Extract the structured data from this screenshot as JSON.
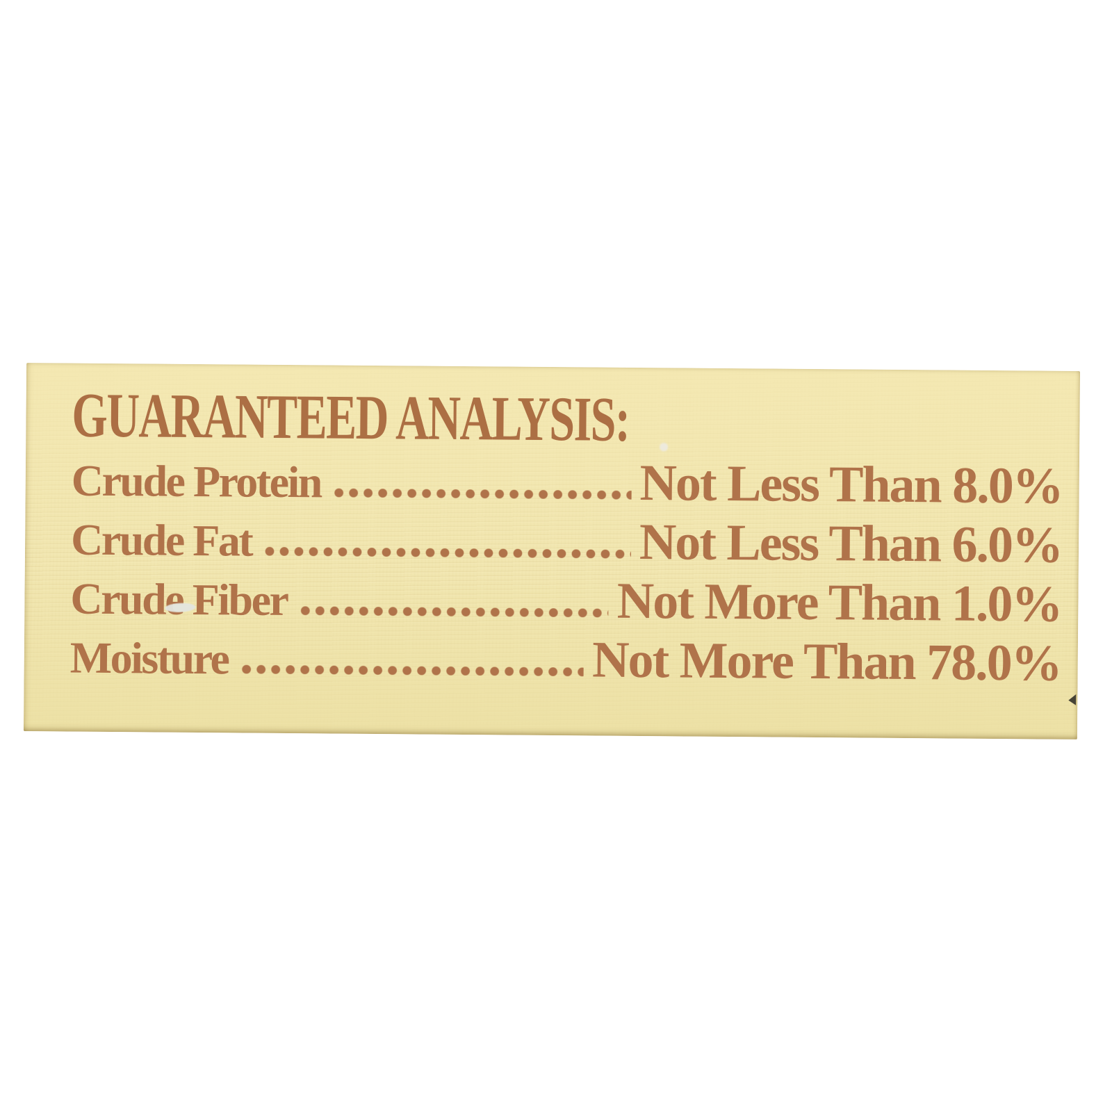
{
  "label": {
    "title": "GUARANTEED ANALYSIS:",
    "rows": [
      {
        "name": "Crude Protein",
        "value": "Not Less Than 8.0%"
      },
      {
        "name": "Crude Fat",
        "value": "Not Less Than 6.0%"
      },
      {
        "name": "Crude Fiber",
        "value": "Not More Than 1.0%"
      },
      {
        "name": "Moisture",
        "value": "Not More Than 78.0%"
      }
    ],
    "colors": {
      "ink": "#b0734a",
      "title_ink": "#ac6f44",
      "paper": "#f1e6b0",
      "page_background": "#ffffff"
    }
  }
}
